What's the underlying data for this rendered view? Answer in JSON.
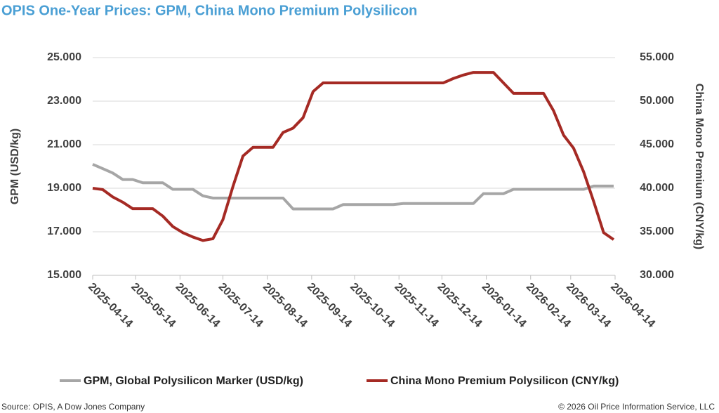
{
  "chart_data": {
    "type": "line",
    "title": "OPIS One-Year Prices: GPM, China Mono Premium Polysilicon",
    "y_label": "GPM (USD/kg)",
    "y2_label": "China Mono Premium (CNY/kg)",
    "source": "Source: OPIS, A Dow Jones Company",
    "copyright": "© 2026 Oil Price Information Service, LLC",
    "grid": true,
    "legend": "bottom",
    "x": [
      "2025-04-14",
      "2025-04-21",
      "2025-04-28",
      "2025-05-05",
      "2025-05-12",
      "2025-05-19",
      "2025-05-26",
      "2025-06-02",
      "2025-06-09",
      "2025-06-16",
      "2025-06-23",
      "2025-06-30",
      "2025-07-07",
      "2025-07-14",
      "2025-07-21",
      "2025-07-28",
      "2025-08-04",
      "2025-08-11",
      "2025-08-18",
      "2025-08-25",
      "2025-09-01",
      "2025-09-08",
      "2025-09-15",
      "2025-09-22",
      "2025-09-29",
      "2025-10-06",
      "2025-10-13",
      "2025-10-20",
      "2025-10-27",
      "2025-11-03",
      "2025-11-10",
      "2025-11-17",
      "2025-11-24",
      "2025-12-01",
      "2025-12-08",
      "2025-12-15",
      "2025-12-22",
      "2025-12-29",
      "2026-01-05",
      "2026-01-12",
      "2026-01-19",
      "2026-01-26",
      "2026-02-02",
      "2026-02-09",
      "2026-02-16",
      "2026-02-23",
      "2026-03-02",
      "2026-03-09",
      "2026-03-16",
      "2026-03-23",
      "2026-03-30",
      "2026-04-06",
      "2026-04-13"
    ],
    "xlim": [
      "2025-04-14",
      "2026-04-14"
    ],
    "xticks": [
      "2025-04-14",
      "2025-05-14",
      "2025-06-14",
      "2025-07-14",
      "2025-08-14",
      "2025-09-14",
      "2025-10-14",
      "2025-11-14",
      "2025-12-14",
      "2026-01-14",
      "2026-02-14",
      "2026-03-14",
      "2026-04-14"
    ],
    "ylim": [
      15,
      25
    ],
    "yticks": [
      {
        "value": 15,
        "label": "15.000"
      },
      {
        "value": 17,
        "label": "17.000"
      },
      {
        "value": 19,
        "label": "19.000"
      },
      {
        "value": 21,
        "label": "21.000"
      },
      {
        "value": 23,
        "label": "23.000"
      },
      {
        "value": 25,
        "label": "25.000"
      }
    ],
    "y2lim": [
      30,
      55
    ],
    "y2ticks": [
      {
        "value": 30,
        "label": "30.000"
      },
      {
        "value": 35,
        "label": "35.000"
      },
      {
        "value": 40,
        "label": "40.000"
      },
      {
        "value": 45,
        "label": "45.000"
      },
      {
        "value": 50,
        "label": "50.000"
      },
      {
        "value": 55,
        "label": "55.000"
      }
    ],
    "series": [
      {
        "name": "GPM, Global Polysilicon Marker (USD/kg)",
        "color": "#a6a6a6",
        "axis": "y",
        "values": [
          20.1,
          19.9,
          19.7,
          19.4,
          19.4,
          19.25,
          19.25,
          19.25,
          18.95,
          18.95,
          18.95,
          18.65,
          18.55,
          18.55,
          18.55,
          18.55,
          18.55,
          18.55,
          18.55,
          18.55,
          18.05,
          18.05,
          18.05,
          18.05,
          18.05,
          18.25,
          18.25,
          18.25,
          18.25,
          18.25,
          18.25,
          18.3,
          18.3,
          18.3,
          18.3,
          18.3,
          18.3,
          18.3,
          18.3,
          18.75,
          18.75,
          18.75,
          18.95,
          18.95,
          18.95,
          18.95,
          18.95,
          18.95,
          18.95,
          18.95,
          19.1,
          19.1,
          19.1
        ]
      },
      {
        "name": "China Mono Premium Polysilicon (CNY/kg)",
        "color": "#a52a24",
        "axis": "y2",
        "values": [
          40.0,
          39.85,
          39.0,
          38.4,
          37.65,
          37.65,
          37.65,
          36.8,
          35.6,
          34.9,
          34.4,
          34.0,
          34.2,
          36.4,
          40.2,
          43.7,
          44.7,
          44.7,
          44.7,
          46.4,
          46.9,
          48.1,
          51.1,
          52.1,
          52.1,
          52.1,
          52.1,
          52.1,
          52.1,
          52.1,
          52.1,
          52.1,
          52.1,
          52.1,
          52.1,
          52.1,
          52.6,
          53.0,
          53.3,
          53.3,
          53.3,
          52.1,
          50.9,
          50.9,
          50.9,
          50.9,
          48.9,
          46.1,
          44.6,
          41.9,
          38.5,
          34.9,
          34.1
        ]
      }
    ]
  }
}
